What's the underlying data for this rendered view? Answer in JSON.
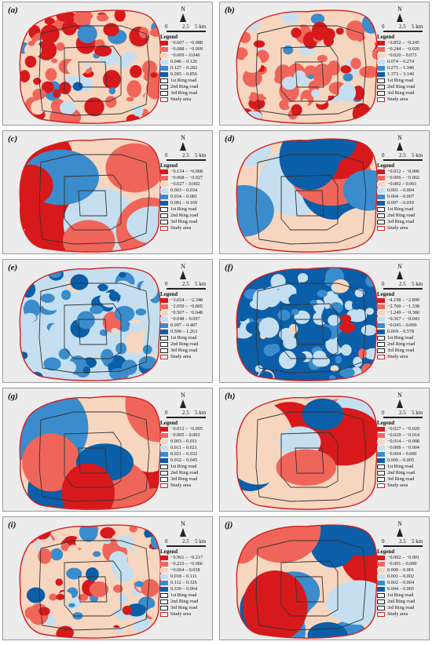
{
  "colors": {
    "c1": "#d7191c",
    "c2": "#f0655a",
    "c3": "#f7d6bf",
    "c4": "#c5dff0",
    "c5": "#3a8ccc",
    "c6": "#0b5ea8",
    "study": "#d22020",
    "ring": "#333333",
    "base": "#ececec"
  },
  "common": {
    "north": "N",
    "scale": [
      "0",
      "2.5",
      "5 km"
    ],
    "legend_title": "Legend",
    "ring1": "1st Ring road",
    "ring2": "2nd Ring road",
    "ring3": "3rd Ring road",
    "study_area": "Study area"
  },
  "panels": [
    {
      "label": "(a)",
      "ranges": [
        "−0.607 – −0.088",
        "−0.088 – −0.009",
        "−0.009 – 0.046",
        "0.046 – 0.126",
        "0.127 – 0.282",
        "0.285 – 0.856"
      ]
    },
    {
      "label": "(b)",
      "ranges": [
        "−0.852 – −0.245",
        "−0.244 – −0.020",
        "−0.020 – 0.073",
        "0.074 – 0.274",
        "0.275 – 1.346",
        "1.373 – 3.140"
      ]
    },
    {
      "label": "(c)",
      "ranges": [
        "−0.134 – −0.068",
        "−0.068 – −0.027",
        "−0.027 – 0.002",
        "0.003 – 0.034",
        "0.034 – 0.081",
        "0.081 – 0.169"
      ]
    },
    {
      "label": "(d)",
      "ranges": [
        "−0.012 – −0.006",
        "−0.006 – −0.002",
        "−0.002 – 0.001",
        "0.001 – 0.004",
        "0.004 – 0.007",
        "0.007 – 0.010"
      ]
    },
    {
      "label": "(e)",
      "ranges": [
        "−3.654 – −2.348",
        "−2.059 – −0.805",
        "−0.567 – −0.048",
        "−0.048 – 0.097",
        "0.097 – 0.487",
        "0.500 – 1.263"
      ]
    },
    {
      "label": "(f)",
      "ranges": [
        "−4.198 – −2.890",
        "−2.760 – −1.338",
        "−1.249 – −0.380",
        "−0.367 – −0.043",
        "−0.045 – 0.069",
        "0.069 – 0.578"
      ]
    },
    {
      "label": "(g)",
      "ranges": [
        "−0.012 – −0.005",
        "−0.005 – 0.003",
        "0.003 – 0.011",
        "0.011 – 0.021",
        "0.021 – 0.032",
        "0.032 – 0.045"
      ]
    },
    {
      "label": "(h)",
      "ranges": [
        "−0.027 – −0.020",
        "−0.020 – −0.014",
        "−0.014 – −0.008",
        "−0.008 – −0.004",
        "−0.004 – 0.000",
        "0.000 – 0.005"
      ]
    },
    {
      "label": "(i)",
      "ranges": [
        "−0.961 – −0.217",
        "−0.210 – −0.066",
        "−0.064 – 0.018",
        "0.018 – 0.111",
        "0.112 – 0.326",
        "0.330 – 0.964"
      ]
    },
    {
      "label": "(j)",
      "ranges": [
        "−0.002 – −0.001",
        "−0.001 – 0.000",
        "0.000 – 0.001",
        "0.001 – 0.002",
        "0.002 – 0.004",
        "0.004 – 0.005"
      ]
    }
  ]
}
